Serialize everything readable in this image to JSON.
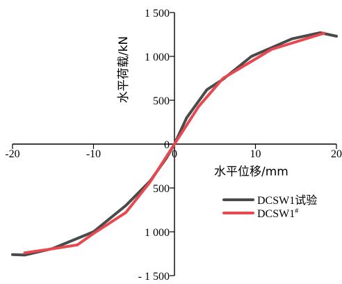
{
  "chart_data": {
    "type": "line",
    "xlabel": "水平位移/mm",
    "ylabel": "水平荷载/kN",
    "xlim": [
      -20,
      20
    ],
    "ylim": [
      -1500,
      1500
    ],
    "x_ticks": [
      -20,
      -10,
      0,
      10,
      20
    ],
    "x_tick_labels": [
      "-20",
      "-10",
      "0",
      "10",
      "20"
    ],
    "y_ticks": [
      1500,
      1000,
      500,
      0,
      -500,
      -1000,
      -1500
    ],
    "y_tick_labels": [
      "1 500",
      "1 000",
      "500",
      "0",
      "500",
      "1 000",
      "- 1 500"
    ],
    "grid": false,
    "legend_position": "right-middle",
    "series": [
      {
        "name": "DCSW1试验",
        "color": "#4a4a4a",
        "points": [
          [
            -20,
            -1260
          ],
          [
            -18.5,
            -1265
          ],
          [
            -15,
            -1190
          ],
          [
            -10,
            -1000
          ],
          [
            -6,
            -700
          ],
          [
            -3,
            -420
          ],
          [
            -1,
            -160
          ],
          [
            0,
            0
          ],
          [
            1.5,
            300
          ],
          [
            4,
            620
          ],
          [
            6,
            740
          ],
          [
            9.5,
            1000
          ],
          [
            12,
            1100
          ],
          [
            14.5,
            1200
          ],
          [
            18,
            1270
          ],
          [
            20,
            1230
          ]
        ]
      },
      {
        "name": "DCSW1",
        "name_suffix": "#",
        "color": "#e8484f",
        "points": [
          [
            -18.5,
            -1240
          ],
          [
            -15.5,
            -1200
          ],
          [
            -12,
            -1150
          ],
          [
            -10,
            -1020
          ],
          [
            -6,
            -780
          ],
          [
            -3,
            -430
          ],
          [
            0,
            0
          ],
          [
            3,
            430
          ],
          [
            6,
            750
          ],
          [
            12,
            1080
          ],
          [
            18.5,
            1265
          ]
        ]
      }
    ]
  }
}
